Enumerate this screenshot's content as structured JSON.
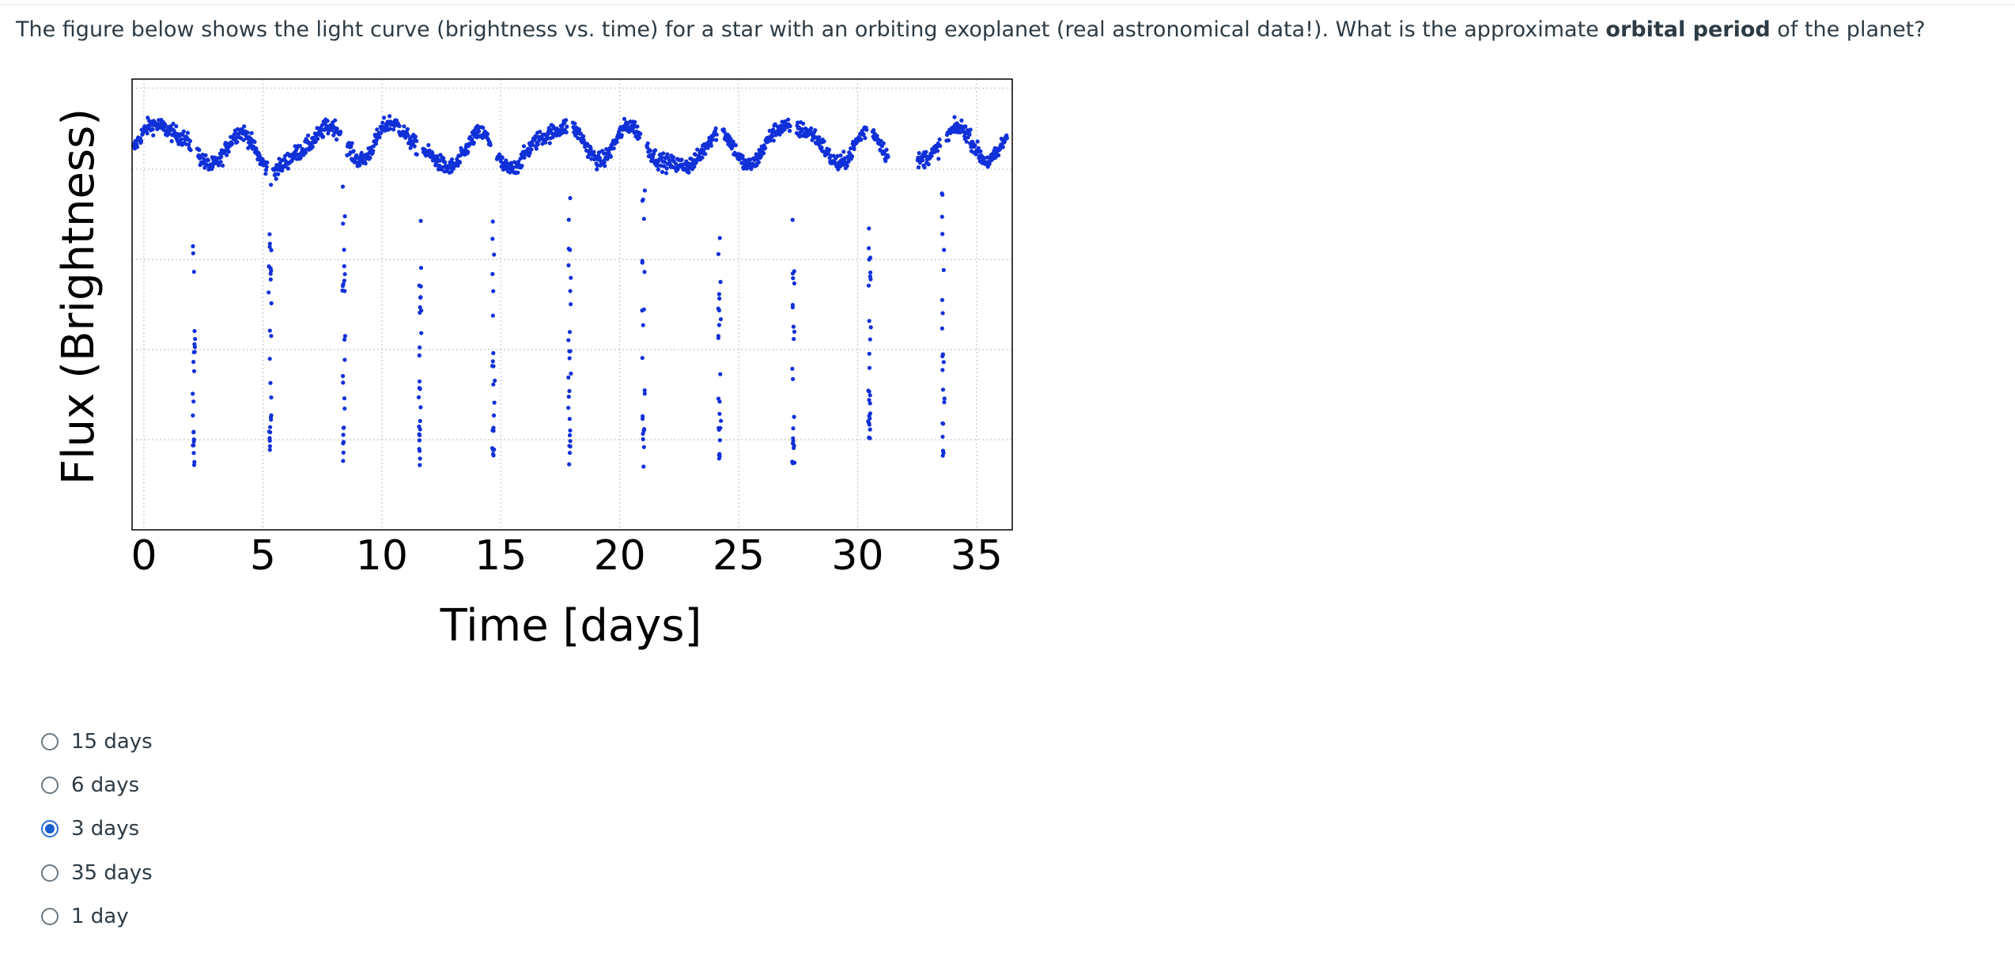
{
  "question": {
    "text_before": "The figure below shows the light curve (brightness vs. time) for a star with an orbiting exoplanet (real astronomical data!). What is the approximate ",
    "text_bold": "orbital period",
    "text_after": " of the planet?"
  },
  "chart_data": {
    "type": "scatter",
    "xlabel": "Time [days]",
    "ylabel": "Flux (Brightness)",
    "xlim": [
      -0.5,
      36.5
    ],
    "ylim": [
      0,
      1
    ],
    "x_ticks": [
      "0",
      "5",
      "10",
      "15",
      "20",
      "25",
      "30",
      "35"
    ],
    "x_tick_values": [
      0,
      5,
      10,
      15,
      20,
      25,
      30,
      35
    ],
    "grid": true,
    "point_color": "#1030d8",
    "baseline_flux_range": [
      0.76,
      0.93
    ],
    "transit_depth_min": 0.14,
    "transit_times": [
      2.1,
      5.3,
      8.4,
      11.6,
      14.7,
      17.9,
      21.0,
      24.2,
      27.3,
      30.5,
      33.6
    ],
    "gap": [
      31.3,
      32.5
    ]
  },
  "answers": {
    "options": [
      {
        "label": "15 days",
        "checked": false
      },
      {
        "label": "6 days",
        "checked": false
      },
      {
        "label": "3 days",
        "checked": true
      },
      {
        "label": "35 days",
        "checked": false
      },
      {
        "label": "1 day",
        "checked": false
      }
    ]
  }
}
